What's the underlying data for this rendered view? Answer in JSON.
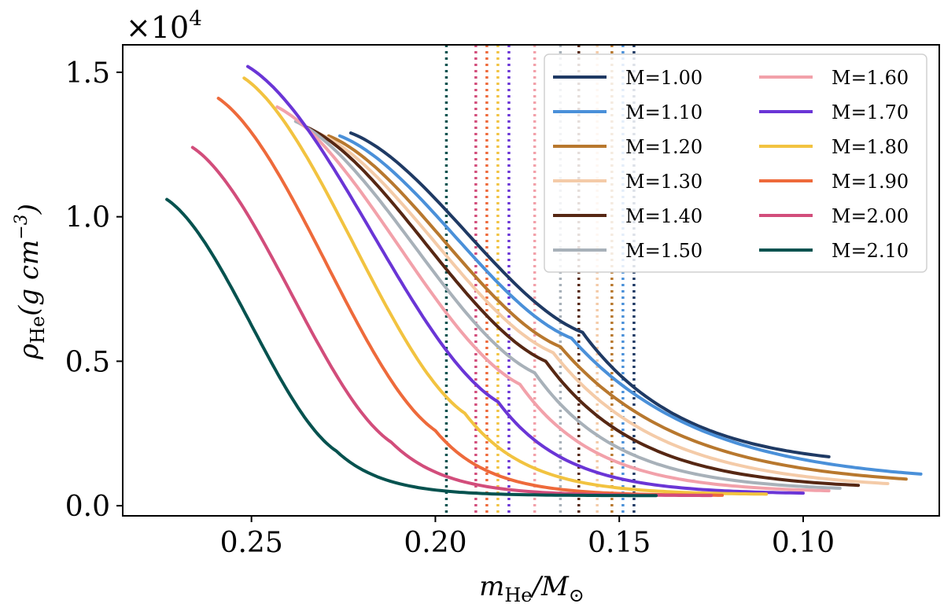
{
  "chart_data": {
    "type": "line",
    "title": "",
    "xlabel": {
      "base": "m",
      "sub": "He",
      "mid": "/M",
      "sub2": "⊙"
    },
    "ylabel": {
      "base": "ρ",
      "sub": "He",
      "mid": "(g cm",
      "sup": "−3",
      "end": ")"
    },
    "y_scale_label": {
      "base": "×10",
      "sup": "4"
    },
    "xlim": [
      0.285,
      0.063
    ],
    "ylim": [
      -0.035,
      1.595
    ],
    "xticks": [
      0.25,
      0.2,
      0.15,
      0.1
    ],
    "xtick_labels": [
      "0.25",
      "0.20",
      "0.15",
      "0.10"
    ],
    "yticks": [
      0.0,
      0.5,
      1.0,
      1.5
    ],
    "ytick_labels": [
      "0.0",
      "0.5",
      "1.0",
      "1.5"
    ],
    "legend_position": "top-right",
    "legend_columns": 2,
    "series": [
      {
        "name": "M=1.00",
        "color": "#1f3a64",
        "vline": 0.146,
        "p0": [
          0.223,
          1.29
        ],
        "knee": [
          0.16,
          0.6
        ],
        "end": [
          0.093,
          0.13
        ],
        "k": 0.65
      },
      {
        "name": "M=1.10",
        "color": "#4a90d9",
        "vline": 0.149,
        "p0": [
          0.226,
          1.28
        ],
        "knee": [
          0.163,
          0.58
        ],
        "end": [
          0.068,
          0.075
        ],
        "k": 0.6
      },
      {
        "name": "M=1.20",
        "color": "#b8782e",
        "vline": 0.152,
        "p0": [
          0.229,
          1.28
        ],
        "knee": [
          0.166,
          0.55
        ],
        "end": [
          0.072,
          0.065
        ],
        "k": 0.56
      },
      {
        "name": "M=1.30",
        "color": "#f4cba8",
        "vline": 0.156,
        "p0": [
          0.232,
          1.29
        ],
        "knee": [
          0.168,
          0.53
        ],
        "end": [
          0.077,
          0.055
        ],
        "k": 0.52
      },
      {
        "name": "M=1.40",
        "color": "#562713",
        "vline": 0.161,
        "p0": [
          0.235,
          1.31
        ],
        "knee": [
          0.17,
          0.5
        ],
        "end": [
          0.085,
          0.055
        ],
        "k": 0.48
      },
      {
        "name": "M=1.50",
        "color": "#a8b1b9",
        "vline": 0.166,
        "p0": [
          0.238,
          1.33
        ],
        "knee": [
          0.173,
          0.46
        ],
        "end": [
          0.09,
          0.05
        ],
        "k": 0.44
      },
      {
        "name": "M=1.60",
        "color": "#f2a1aa",
        "vline": 0.173,
        "p0": [
          0.243,
          1.38
        ],
        "knee": [
          0.177,
          0.42
        ],
        "end": [
          0.093,
          0.045
        ],
        "k": 0.4
      },
      {
        "name": "M=1.70",
        "color": "#6a35d6",
        "vline": 0.18,
        "p0": [
          0.251,
          1.52
        ],
        "knee": [
          0.183,
          0.36
        ],
        "end": [
          0.1,
          0.04
        ],
        "k": 0.36
      },
      {
        "name": "M=1.80",
        "color": "#f2c340",
        "vline": 0.183,
        "p0": [
          0.252,
          1.48
        ],
        "knee": [
          0.192,
          0.32
        ],
        "end": [
          0.11,
          0.038
        ],
        "k": 0.33
      },
      {
        "name": "M=1.90",
        "color": "#ee6a3b",
        "vline": 0.186,
        "p0": [
          0.259,
          1.41
        ],
        "knee": [
          0.2,
          0.26
        ],
        "end": [
          0.122,
          0.035
        ],
        "k": 0.3
      },
      {
        "name": "M=2.00",
        "color": "#d24d7b",
        "vline": 0.189,
        "p0": [
          0.266,
          1.24
        ],
        "knee": [
          0.212,
          0.22
        ],
        "end": [
          0.125,
          0.035
        ],
        "k": 0.27
      },
      {
        "name": "M=2.10",
        "color": "#06524f",
        "vline": 0.197,
        "p0": [
          0.273,
          1.06
        ],
        "knee": [
          0.227,
          0.19
        ],
        "end": [
          0.14,
          0.035
        ],
        "k": 0.24
      }
    ]
  }
}
